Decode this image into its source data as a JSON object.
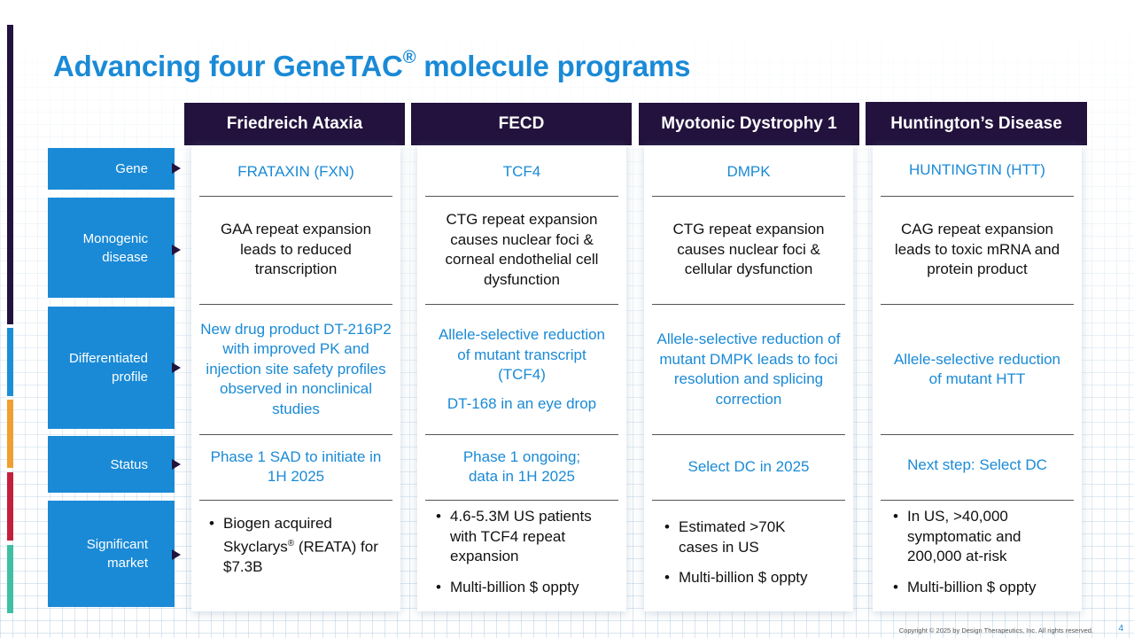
{
  "title": {
    "main": "Advancing four GeneTAC",
    "reg": "®",
    "rest": " molecule programs"
  },
  "columns": [
    "Friedreich Ataxia",
    "FECD",
    "Myotonic Dystrophy 1",
    "Huntington’s Disease"
  ],
  "rows": [
    "Gene",
    "Monogenic disease",
    "Differentiated profile",
    "Status",
    "Significant market"
  ],
  "fa": {
    "gene": "FRATAXIN (FXN)",
    "disease": "GAA repeat expansion leads to reduced transcription",
    "profile": "New drug product DT-216P2 with improved PK and injection site safety profiles observed in nonclinical studies",
    "status": "Phase 1 SAD to initiate in 1H 2025",
    "market_a": "Biogen acquired Skyclarys",
    "market_reg": "®",
    "market_b": " (REATA) for $7.3B"
  },
  "fecd": {
    "gene": "TCF4",
    "disease": "CTG repeat expansion causes nuclear foci & corneal endothelial cell dysfunction",
    "profile": "Allele-selective reduction of mutant transcript (TCF4)",
    "profile2": "DT-168 in an eye drop",
    "status": "Phase 1 ongoing; data in 1H 2025",
    "market": [
      "4.6-5.3M US patients with TCF4 repeat expansion",
      "Multi-billion $ oppty"
    ]
  },
  "dm1": {
    "gene": "DMPK",
    "disease": "CTG repeat expansion causes nuclear foci & cellular dysfunction",
    "profile": "Allele-selective reduction of mutant DMPK leads to foci resolution and splicing correction",
    "status": "Select DC in 2025",
    "market": [
      "Estimated >70K cases in US",
      "Multi-billion $ oppty"
    ]
  },
  "hd": {
    "gene": "HUNTINGTIN (HTT)",
    "disease": "CAG repeat expansion leads to toxic mRNA and protein product",
    "profile": "Allele-selective reduction of mutant HTT",
    "status": "Next step: Select DC",
    "market": [
      "In US, >40,000 symptomatic and 200,000 at-risk",
      "Multi-billion $ oppty"
    ]
  },
  "footer": "Copyright © 2025 by Design Therapeutics, Inc. All rights reserved.",
  "page_number": "4",
  "colors": {
    "brand_blue": "#1a8ad6",
    "header_navy": "#22123d",
    "accent_light_blue": "#1b8fd6",
    "accent_orange": "#f0a030",
    "accent_red": "#c4203c",
    "accent_teal": "#3fbfa3"
  }
}
